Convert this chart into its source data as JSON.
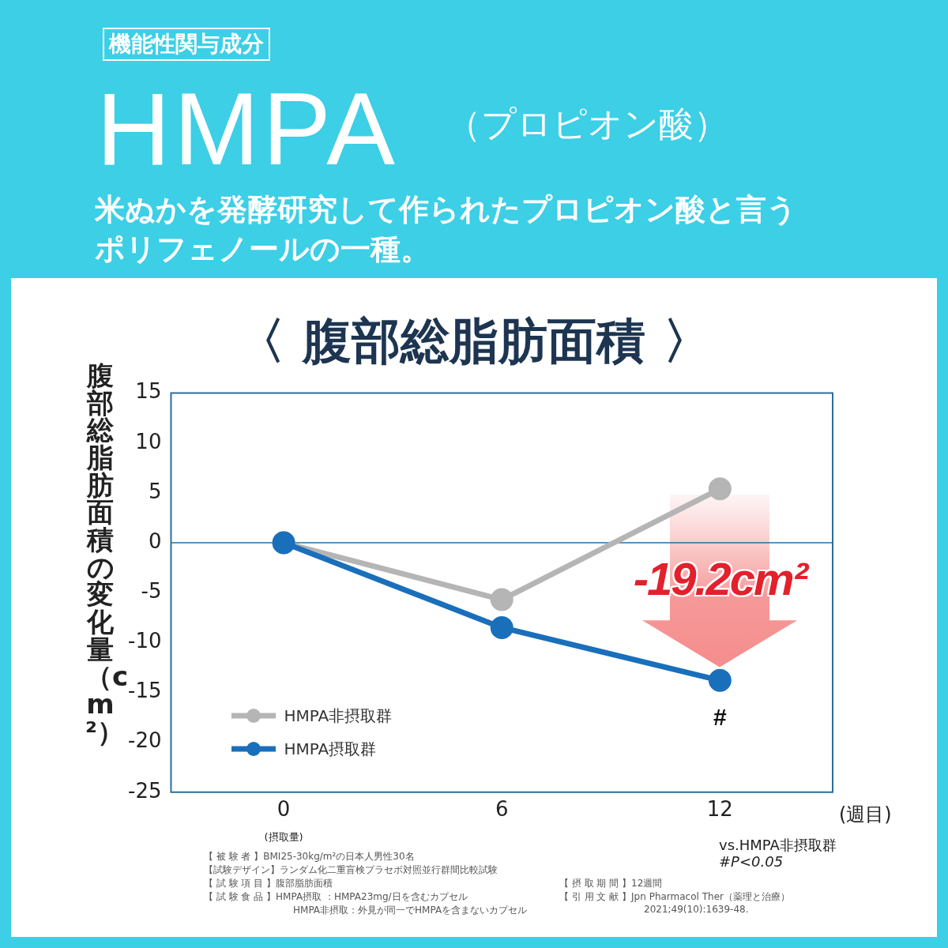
{
  "chart_data": {
    "type": "line",
    "title": "〈 腹部総脂肪面積 〉",
    "ylabel": "腹部総脂肪面積の変化量（cm²）",
    "xlabel": "(週目)",
    "x": [
      0,
      6,
      12
    ],
    "series": [
      {
        "name": "HMPA非摂取群",
        "color": "#b5b5b5",
        "values": [
          0,
          -5.7,
          5.4
        ]
      },
      {
        "name": "HMPA摂取群",
        "color": "#1a6fbb",
        "values": [
          0,
          -8.5,
          -13.8
        ]
      }
    ],
    "xlim": [
      -3.1,
      15.1
    ],
    "xticks": [
      0,
      6,
      12
    ],
    "ylim": [
      -25,
      15
    ],
    "yticks": [
      -25,
      -20,
      -15,
      -10,
      -5,
      0,
      5,
      10,
      15
    ],
    "ref_lines": [
      {
        "axis": "y",
        "value": 0,
        "color": "#2a6f97"
      }
    ],
    "grid": false,
    "legend": "bottom left",
    "marker": "circle",
    "line_style": "solid",
    "annotations": [
      "機能性関与成分",
      "HMPA",
      "（プロピオン酸）",
      "米ぬかを発酵研究して作られたプロピオン酸と言う",
      "ポリフェノールの一種。",
      "(摂取量)",
      "-19.2cm²",
      "#",
      "vs.HMPA非摂取群",
      "#P<0.05",
      "【 被 験 者 】BMI25-30kg/m²の日本人男性30名",
      "【試験デザイン】ランダム化二重盲検プラセボ対照並行群間比較試験",
      "【 試 験 項 目 】腹部脂肪面積",
      "【 試 験 食 品 】HMPA摂取 ：HMPA23mg/日を含むカプセル",
      "HMPA非摂取：外見が同一でHMPAを含まないカプセル",
      "【 摂 取 期 間 】12週間",
      "【 引 用 文 献 】Jpn Pharmacol Ther（薬理と治療）",
      "2021;49(10):1639-48."
    ]
  }
}
